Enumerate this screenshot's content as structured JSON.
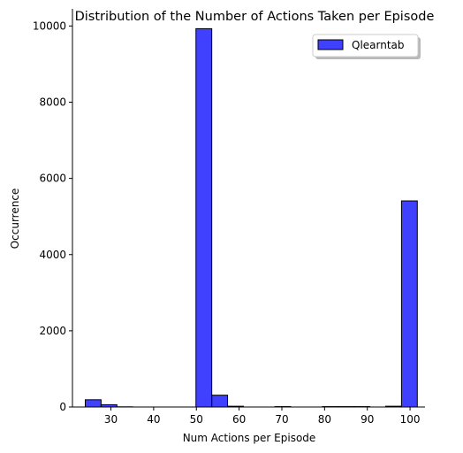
{
  "chart_data": {
    "type": "bar",
    "title": "Distribution of the Number of Actions Taken per Episode",
    "xlabel": "Num Actions per Episode",
    "ylabel": "Occurrence",
    "xlim": [
      21,
      103.5
    ],
    "ylim": [
      0,
      10450
    ],
    "xticks": [
      30,
      40,
      50,
      60,
      70,
      80,
      90,
      100
    ],
    "yticks": [
      0,
      2000,
      4000,
      6000,
      8000,
      10000
    ],
    "grid": false,
    "legend_position": "top-right",
    "bar_color": "#0000ff",
    "bar_alpha": 0.75,
    "edge_color": "#000000",
    "series": [
      {
        "name": "Qlearntab",
        "bins": [
          {
            "x0": 24.0,
            "x1": 27.7,
            "value": 190
          },
          {
            "x0": 27.7,
            "x1": 31.4,
            "value": 60
          },
          {
            "x0": 31.4,
            "x1": 35.1,
            "value": 5
          },
          {
            "x0": 49.9,
            "x1": 53.6,
            "value": 9930
          },
          {
            "x0": 53.6,
            "x1": 57.3,
            "value": 310
          },
          {
            "x0": 57.3,
            "x1": 61.0,
            "value": 20
          },
          {
            "x0": 68.4,
            "x1": 72.1,
            "value": 10
          },
          {
            "x0": 79.5,
            "x1": 83.2,
            "value": 10
          },
          {
            "x0": 83.2,
            "x1": 86.9,
            "value": 10
          },
          {
            "x0": 86.9,
            "x1": 90.6,
            "value": 10
          },
          {
            "x0": 94.3,
            "x1": 98.0,
            "value": 20
          },
          {
            "x0": 98.0,
            "x1": 101.7,
            "value": 5410
          }
        ]
      }
    ]
  }
}
